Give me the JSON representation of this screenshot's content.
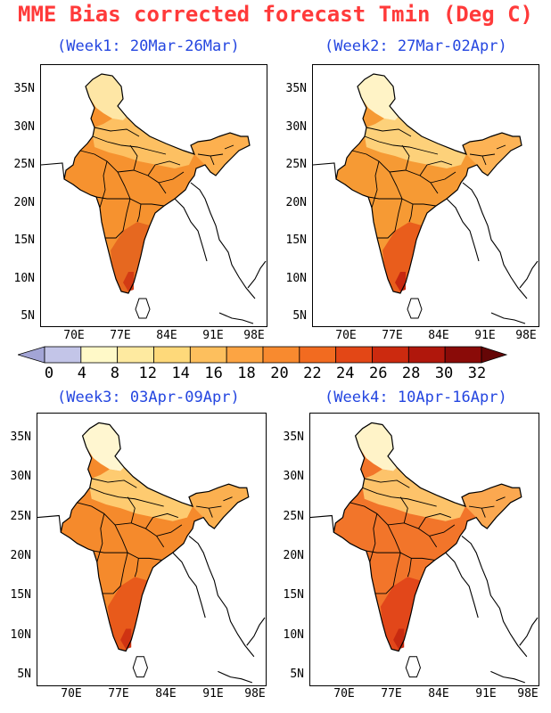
{
  "title": "MME Bias corrected forecast Tmin (Deg C)",
  "panels": [
    {
      "label": "(Week1: 20Mar-26Mar)",
      "level": 1
    },
    {
      "label": "(Week2: 27Mar-02Apr)",
      "level": 2
    },
    {
      "label": "(Week3: 03Apr-09Apr)",
      "level": 3
    },
    {
      "label": "(Week4: 10Apr-16Apr)",
      "level": 4
    }
  ],
  "lat_labels": [
    "35N",
    "30N",
    "25N",
    "20N",
    "15N",
    "10N",
    "5N"
  ],
  "lon_labels": [
    "70E",
    "77E",
    "84E",
    "91E",
    "98E"
  ],
  "colorbar": {
    "levels": [
      "0",
      "4",
      "8",
      "12",
      "14",
      "16",
      "18",
      "20",
      "22",
      "24",
      "26",
      "28",
      "30",
      "32"
    ],
    "colors": [
      "#a3a5d6",
      "#c3c5e8",
      "#fff9c8",
      "#feeaa0",
      "#fed97a",
      "#fdbf5d",
      "#fca443",
      "#f88a2f",
      "#f26b20",
      "#e34716",
      "#cc2a0f",
      "#b0170c",
      "#8a0b08",
      "#650606"
    ]
  }
}
